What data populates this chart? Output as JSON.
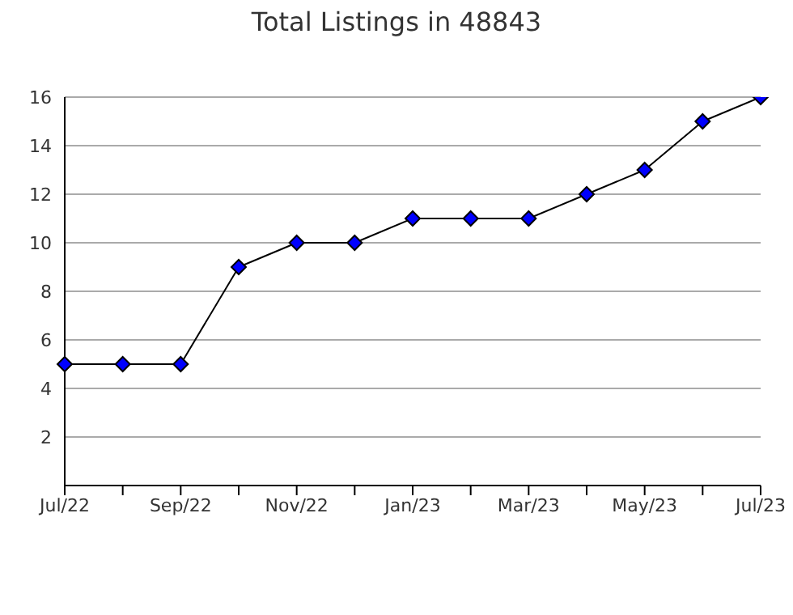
{
  "chart_data": {
    "type": "line",
    "title": "Total Listings in 48843",
    "categories": [
      "Jul/22",
      null,
      "Sep/22",
      null,
      "Nov/22",
      null,
      "Jan/23",
      null,
      "Mar/23",
      null,
      "May/23",
      null,
      "Jul/23"
    ],
    "series": [
      {
        "color": "#0000ff",
        "values": [
          5,
          5,
          5,
          9,
          10,
          10,
          11,
          11,
          11,
          12,
          13,
          15,
          16
        ]
      }
    ],
    "ylim": [
      0,
      16
    ],
    "yticks": [
      2,
      4,
      6,
      8,
      10,
      12,
      14,
      16
    ],
    "grid": "y",
    "marker": "diamond",
    "line_style": "solid",
    "legend": false
  }
}
